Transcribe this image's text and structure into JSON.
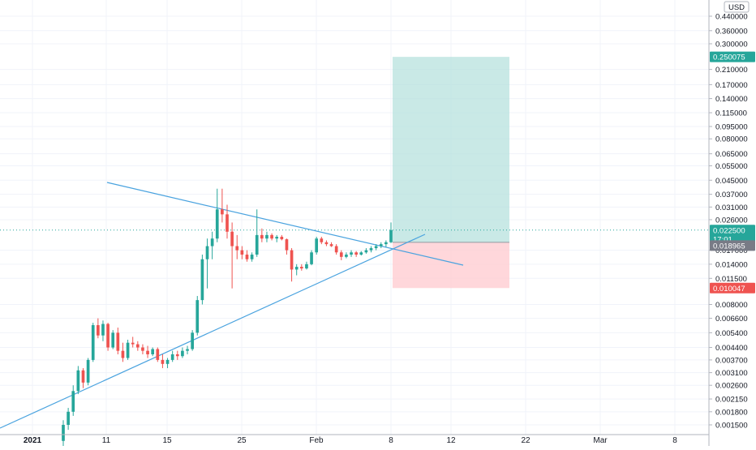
{
  "chart_data": {
    "type": "candlestick",
    "currency_label": "USD",
    "y_scale": "log",
    "y_ticks": [
      "0.440000",
      "0.360000",
      "0.300000",
      "0.210000",
      "0.170000",
      "0.140000",
      "0.115000",
      "0.095000",
      "0.080000",
      "0.065000",
      "0.055000",
      "0.045000",
      "0.037000",
      "0.031000",
      "0.026000",
      "0.017000",
      "0.014000",
      "0.011500",
      "0.008000",
      "0.006600",
      "0.005400",
      "0.004400",
      "0.003700",
      "0.003100",
      "0.002600",
      "0.002150",
      "0.001800",
      "0.001500"
    ],
    "x_ticks": [
      "2021",
      "11",
      "15",
      "25",
      "Feb",
      "8",
      "12",
      "22",
      "Mar",
      "8"
    ],
    "price_labels": [
      {
        "value": "0.250075",
        "color": "#26a69a"
      },
      {
        "value": "0.022500",
        "color": "#26a69a"
      },
      {
        "value": "17:01",
        "color": "#26a69a"
      },
      {
        "value": "0.018965",
        "color": "#787b86"
      },
      {
        "value": "0.010047",
        "color": "#ef5350"
      }
    ],
    "position": {
      "entry": 0.018965,
      "target": 0.250075,
      "stop": 0.010047,
      "profit_color": "#b2dfdb",
      "loss_color": "#ffcdd2"
    },
    "current_price": 0.0225,
    "colors": {
      "up": "#26a69a",
      "down": "#ef5350",
      "trendline": "#4aa3df",
      "grid": "#f0f3fa"
    },
    "candles": [
      {
        "o": 0.0012,
        "h": 0.0016,
        "l": 0.0011,
        "c": 0.0015
      },
      {
        "o": 0.0015,
        "h": 0.0019,
        "l": 0.0014,
        "c": 0.0018
      },
      {
        "o": 0.0018,
        "h": 0.0026,
        "l": 0.0017,
        "c": 0.0024
      },
      {
        "o": 0.0024,
        "h": 0.0034,
        "l": 0.0023,
        "c": 0.0032
      },
      {
        "o": 0.0032,
        "h": 0.0033,
        "l": 0.0025,
        "c": 0.0027
      },
      {
        "o": 0.0027,
        "h": 0.0038,
        "l": 0.0026,
        "c": 0.0037
      },
      {
        "o": 0.0037,
        "h": 0.0062,
        "l": 0.0036,
        "c": 0.006
      },
      {
        "o": 0.006,
        "h": 0.0066,
        "l": 0.005,
        "c": 0.0052
      },
      {
        "o": 0.0052,
        "h": 0.0064,
        "l": 0.0048,
        "c": 0.0061
      },
      {
        "o": 0.0061,
        "h": 0.0062,
        "l": 0.0042,
        "c": 0.0044
      },
      {
        "o": 0.0044,
        "h": 0.0056,
        "l": 0.0043,
        "c": 0.0054
      },
      {
        "o": 0.0054,
        "h": 0.0058,
        "l": 0.004,
        "c": 0.0042
      },
      {
        "o": 0.0042,
        "h": 0.0047,
        "l": 0.0036,
        "c": 0.0038
      },
      {
        "o": 0.0038,
        "h": 0.0049,
        "l": 0.0037,
        "c": 0.0047
      },
      {
        "o": 0.0047,
        "h": 0.0051,
        "l": 0.0044,
        "c": 0.0046
      },
      {
        "o": 0.0046,
        "h": 0.0048,
        "l": 0.0042,
        "c": 0.0044
      },
      {
        "o": 0.0044,
        "h": 0.0046,
        "l": 0.004,
        "c": 0.0042
      },
      {
        "o": 0.0042,
        "h": 0.0045,
        "l": 0.0038,
        "c": 0.004
      },
      {
        "o": 0.004,
        "h": 0.0044,
        "l": 0.0039,
        "c": 0.0043
      },
      {
        "o": 0.0043,
        "h": 0.0044,
        "l": 0.0036,
        "c": 0.0037
      },
      {
        "o": 0.0037,
        "h": 0.004,
        "l": 0.0033,
        "c": 0.0035
      },
      {
        "o": 0.0035,
        "h": 0.0038,
        "l": 0.0033,
        "c": 0.0037
      },
      {
        "o": 0.0037,
        "h": 0.0042,
        "l": 0.0036,
        "c": 0.004
      },
      {
        "o": 0.004,
        "h": 0.0042,
        "l": 0.0037,
        "c": 0.0039
      },
      {
        "o": 0.0039,
        "h": 0.0044,
        "l": 0.0038,
        "c": 0.0042
      },
      {
        "o": 0.0042,
        "h": 0.0045,
        "l": 0.004,
        "c": 0.0043
      },
      {
        "o": 0.0043,
        "h": 0.0056,
        "l": 0.0042,
        "c": 0.0054
      },
      {
        "o": 0.0054,
        "h": 0.009,
        "l": 0.0052,
        "c": 0.0085
      },
      {
        "o": 0.0085,
        "h": 0.016,
        "l": 0.008,
        "c": 0.015
      },
      {
        "o": 0.015,
        "h": 0.02,
        "l": 0.01,
        "c": 0.018
      },
      {
        "o": 0.018,
        "h": 0.022,
        "l": 0.015,
        "c": 0.02
      },
      {
        "o": 0.02,
        "h": 0.04,
        "l": 0.019,
        "c": 0.03
      },
      {
        "o": 0.03,
        "h": 0.04,
        "l": 0.025,
        "c": 0.028
      },
      {
        "o": 0.028,
        "h": 0.032,
        "l": 0.02,
        "c": 0.022
      },
      {
        "o": 0.022,
        "h": 0.025,
        "l": 0.01,
        "c": 0.018
      },
      {
        "o": 0.018,
        "h": 0.021,
        "l": 0.015,
        "c": 0.017
      },
      {
        "o": 0.017,
        "h": 0.018,
        "l": 0.015,
        "c": 0.016
      },
      {
        "o": 0.016,
        "h": 0.017,
        "l": 0.0145,
        "c": 0.015
      },
      {
        "o": 0.015,
        "h": 0.0165,
        "l": 0.0145,
        "c": 0.016
      },
      {
        "o": 0.016,
        "h": 0.03,
        "l": 0.0155,
        "c": 0.021
      },
      {
        "o": 0.021,
        "h": 0.023,
        "l": 0.019,
        "c": 0.02
      },
      {
        "o": 0.02,
        "h": 0.022,
        "l": 0.019,
        "c": 0.021
      },
      {
        "o": 0.021,
        "h": 0.0215,
        "l": 0.0195,
        "c": 0.02
      },
      {
        "o": 0.02,
        "h": 0.021,
        "l": 0.019,
        "c": 0.0205
      },
      {
        "o": 0.0205,
        "h": 0.021,
        "l": 0.0195,
        "c": 0.0198
      },
      {
        "o": 0.0198,
        "h": 0.02,
        "l": 0.016,
        "c": 0.017
      },
      {
        "o": 0.017,
        "h": 0.0175,
        "l": 0.011,
        "c": 0.013
      },
      {
        "o": 0.013,
        "h": 0.014,
        "l": 0.012,
        "c": 0.0135
      },
      {
        "o": 0.0135,
        "h": 0.014,
        "l": 0.0128,
        "c": 0.0132
      },
      {
        "o": 0.0132,
        "h": 0.0145,
        "l": 0.013,
        "c": 0.014
      },
      {
        "o": 0.014,
        "h": 0.017,
        "l": 0.0138,
        "c": 0.0165
      },
      {
        "o": 0.0165,
        "h": 0.0205,
        "l": 0.016,
        "c": 0.02
      },
      {
        "o": 0.02,
        "h": 0.0205,
        "l": 0.0185,
        "c": 0.019
      },
      {
        "o": 0.019,
        "h": 0.0195,
        "l": 0.018,
        "c": 0.0185
      },
      {
        "o": 0.0185,
        "h": 0.019,
        "l": 0.0178,
        "c": 0.018
      },
      {
        "o": 0.018,
        "h": 0.0185,
        "l": 0.016,
        "c": 0.0165
      },
      {
        "o": 0.0165,
        "h": 0.017,
        "l": 0.0148,
        "c": 0.0155
      },
      {
        "o": 0.0155,
        "h": 0.0165,
        "l": 0.0152,
        "c": 0.016
      },
      {
        "o": 0.016,
        "h": 0.017,
        "l": 0.0155,
        "c": 0.0165
      },
      {
        "o": 0.0165,
        "h": 0.0168,
        "l": 0.0155,
        "c": 0.016
      },
      {
        "o": 0.016,
        "h": 0.0168,
        "l": 0.0158,
        "c": 0.0165
      },
      {
        "o": 0.0165,
        "h": 0.0175,
        "l": 0.0162,
        "c": 0.017
      },
      {
        "o": 0.017,
        "h": 0.018,
        "l": 0.0165,
        "c": 0.0175
      },
      {
        "o": 0.0175,
        "h": 0.0185,
        "l": 0.017,
        "c": 0.018
      },
      {
        "o": 0.018,
        "h": 0.019,
        "l": 0.0175,
        "c": 0.0185
      },
      {
        "o": 0.0185,
        "h": 0.0195,
        "l": 0.0178,
        "c": 0.019
      },
      {
        "o": 0.019,
        "h": 0.025,
        "l": 0.0188,
        "c": 0.0225
      }
    ]
  }
}
